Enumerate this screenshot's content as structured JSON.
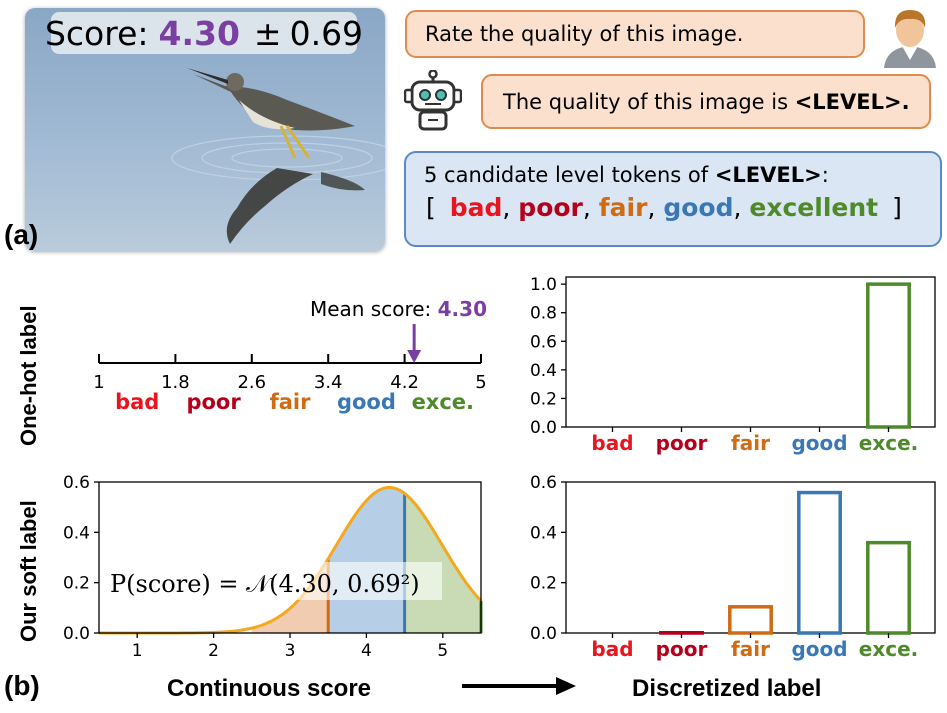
{
  "panel_a": {
    "letter": "(a)",
    "score_prefix": "Score:",
    "score_value": "4.30",
    "score_pm": "±",
    "score_std": "0.69",
    "user_prompt": "Rate the quality of this image.",
    "bot_reply_prefix": "The quality of this image is ",
    "bot_reply_token": "<LEVEL>.",
    "candidates_prefix": "5 candidate level tokens of ",
    "candidates_token": "<LEVEL>",
    "candidates_suffix": ":",
    "bracket_open": "[",
    "bracket_close": "]",
    "levels": [
      "bad",
      "poor",
      "fair",
      "good",
      "excellent"
    ],
    "level_colors": [
      "#e8141e",
      "#b5001c",
      "#cf6b14",
      "#3a78b5",
      "#4f8a2a"
    ],
    "user_icon": "user-avatar-icon",
    "bot_icon": "robot-icon"
  },
  "panel_b": {
    "letter": "(b)",
    "row1_label": "One-hot label",
    "row2_label": "Our soft label",
    "footer_left": "Continuous score",
    "footer_right": "Discretized label",
    "mean_label": "Mean score: ",
    "mean_value": "4.30",
    "mean_color": "#7a3fa0",
    "formula": "P(score) = 𝒩(4.30, 0.69²)",
    "level_short": [
      "bad",
      "poor",
      "fair",
      "good",
      "exce."
    ]
  },
  "chart_data": [
    {
      "type": "number-line",
      "ticks": [
        "1",
        "1.8",
        "2.6",
        "3.4",
        "4.2",
        "5"
      ],
      "range": [
        1,
        5
      ],
      "categories": [
        "bad",
        "poor",
        "fair",
        "good",
        "exce."
      ],
      "marker": 4.3
    },
    {
      "type": "bar",
      "categories": [
        "bad",
        "poor",
        "fair",
        "good",
        "exce."
      ],
      "values": [
        0,
        0,
        0,
        0,
        1.0
      ],
      "ylim": [
        0,
        1.05
      ],
      "yticks": [
        "0.0",
        "0.2",
        "0.4",
        "0.6",
        "0.8",
        "1.0"
      ]
    },
    {
      "type": "area",
      "distribution": {
        "mean": 4.3,
        "std": 0.69
      },
      "xlim": [
        0.5,
        5.5
      ],
      "ylim": [
        0,
        0.6
      ],
      "xticks": [
        "1",
        "2",
        "3",
        "4",
        "5"
      ],
      "yticks": [
        "0.0",
        "0.2",
        "0.4",
        "0.6"
      ],
      "bins": [
        1.0,
        2.5,
        3.5,
        4.5,
        5.5
      ]
    },
    {
      "type": "bar",
      "categories": [
        "bad",
        "poor",
        "fair",
        "good",
        "exce."
      ],
      "values": [
        0.0,
        0.001,
        0.104,
        0.558,
        0.359
      ],
      "ylim": [
        0,
        0.6
      ],
      "yticks": [
        "0.0",
        "0.2",
        "0.4",
        "0.6"
      ]
    }
  ]
}
